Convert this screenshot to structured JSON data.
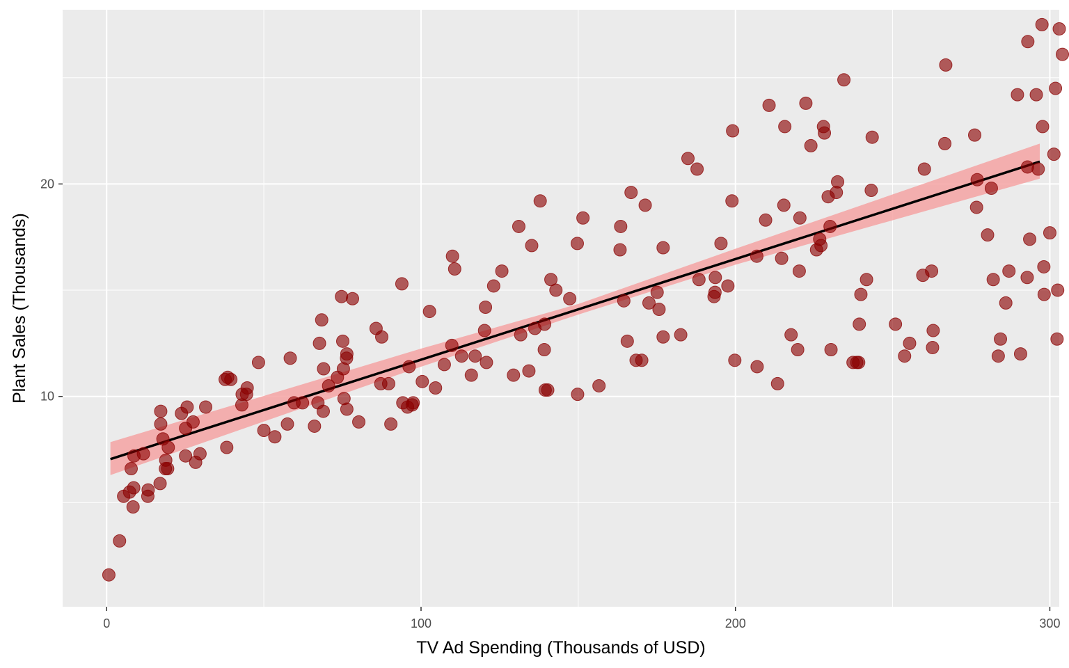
{
  "chart_data": {
    "type": "scatter",
    "title": "",
    "xlabel": "TV Ad Spending (Thousands of USD)",
    "ylabel": "Plant Sales  (Thousands)",
    "xlim": [
      -14,
      303
    ],
    "ylim": [
      0.1,
      28.2
    ],
    "x_ticks": [
      0,
      100,
      200,
      300
    ],
    "x_tick_labels": [
      "0",
      "100",
      "200",
      "300"
    ],
    "y_ticks": [
      10,
      20
    ],
    "y_tick_labels": [
      "10",
      "20"
    ],
    "grid": true,
    "legend": "none",
    "colors": {
      "panel_background": "#ebebeb",
      "grid": "#ffffff",
      "points": "#8b0000",
      "trend_line": "#000000",
      "confidence_band": "#f4a3a3"
    },
    "series": [
      {
        "kind": "points",
        "points": [
          [
            0.7,
            1.6
          ],
          [
            4.1,
            3.2
          ],
          [
            5.4,
            5.3
          ],
          [
            7.3,
            5.5
          ],
          [
            7.8,
            6.6
          ],
          [
            8.4,
            4.8
          ],
          [
            8.6,
            5.7
          ],
          [
            8.7,
            7.2
          ],
          [
            11.7,
            7.3
          ],
          [
            13.1,
            5.3
          ],
          [
            13.2,
            5.6
          ],
          [
            17.0,
            5.9
          ],
          [
            17.2,
            8.7
          ],
          [
            17.2,
            9.3
          ],
          [
            17.9,
            8.0
          ],
          [
            18.7,
            6.6
          ],
          [
            18.8,
            7.0
          ],
          [
            19.4,
            6.6
          ],
          [
            19.6,
            7.6
          ],
          [
            23.8,
            9.2
          ],
          [
            25.1,
            7.2
          ],
          [
            25.1,
            8.5
          ],
          [
            25.6,
            9.5
          ],
          [
            27.5,
            8.8
          ],
          [
            28.3,
            6.9
          ],
          [
            29.7,
            7.3
          ],
          [
            31.5,
            9.5
          ],
          [
            37.7,
            10.8
          ],
          [
            38.2,
            7.6
          ],
          [
            38.5,
            10.9
          ],
          [
            39.5,
            10.8
          ],
          [
            43.0,
            9.6
          ],
          [
            43.1,
            10.1
          ],
          [
            44.5,
            10.1
          ],
          [
            44.7,
            10.4
          ],
          [
            48.3,
            11.6
          ],
          [
            50.0,
            8.4
          ],
          [
            53.5,
            8.1
          ],
          [
            57.5,
            8.7
          ],
          [
            58.4,
            11.8
          ],
          [
            59.6,
            9.7
          ],
          [
            62.3,
            9.7
          ],
          [
            66.1,
            8.6
          ],
          [
            67.2,
            9.7
          ],
          [
            67.7,
            12.5
          ],
          [
            68.4,
            13.6
          ],
          [
            68.9,
            9.3
          ],
          [
            69.0,
            11.3
          ],
          [
            70.6,
            10.5
          ],
          [
            73.4,
            10.9
          ],
          [
            74.7,
            14.7
          ],
          [
            75.1,
            12.6
          ],
          [
            75.3,
            11.3
          ],
          [
            75.5,
            9.9
          ],
          [
            76.3,
            11.8
          ],
          [
            76.4,
            9.4
          ],
          [
            76.4,
            12.0
          ],
          [
            78.2,
            14.6
          ],
          [
            80.2,
            8.8
          ],
          [
            85.7,
            13.2
          ],
          [
            87.2,
            10.6
          ],
          [
            87.5,
            12.8
          ],
          [
            89.7,
            10.6
          ],
          [
            90.4,
            8.7
          ],
          [
            93.9,
            15.3
          ],
          [
            94.2,
            9.7
          ],
          [
            95.7,
            9.5
          ],
          [
            96.2,
            11.4
          ],
          [
            97.2,
            9.6
          ],
          [
            97.5,
            9.7
          ],
          [
            100.4,
            10.7
          ],
          [
            102.7,
            14.0
          ],
          [
            104.6,
            10.4
          ],
          [
            107.4,
            11.5
          ],
          [
            109.8,
            12.4
          ],
          [
            110.0,
            16.6
          ],
          [
            110.7,
            16.0
          ],
          [
            112.9,
            11.9
          ],
          [
            116.0,
            11.0
          ],
          [
            117.2,
            11.9
          ],
          [
            120.2,
            13.1
          ],
          [
            120.5,
            14.2
          ],
          [
            120.8,
            11.6
          ],
          [
            123.1,
            15.2
          ],
          [
            125.7,
            15.9
          ],
          [
            129.4,
            11.0
          ],
          [
            131.1,
            18.0
          ],
          [
            131.7,
            12.9
          ],
          [
            134.3,
            11.2
          ],
          [
            135.2,
            17.1
          ],
          [
            136.2,
            13.2
          ],
          [
            137.9,
            19.2
          ],
          [
            139.2,
            12.2
          ],
          [
            139.3,
            13.4
          ],
          [
            139.5,
            10.3
          ],
          [
            140.3,
            10.3
          ],
          [
            141.3,
            15.5
          ],
          [
            142.9,
            15.0
          ],
          [
            147.3,
            14.6
          ],
          [
            149.7,
            17.2
          ],
          [
            149.8,
            10.1
          ],
          [
            151.5,
            18.4
          ],
          [
            156.6,
            10.5
          ],
          [
            163.3,
            16.9
          ],
          [
            163.5,
            18.0
          ],
          [
            164.5,
            14.5
          ],
          [
            165.6,
            12.6
          ],
          [
            166.8,
            19.6
          ],
          [
            168.4,
            11.7
          ],
          [
            170.2,
            11.7
          ],
          [
            171.3,
            19.0
          ],
          [
            172.5,
            14.4
          ],
          [
            175.1,
            14.9
          ],
          [
            175.7,
            14.1
          ],
          [
            177.0,
            17.0
          ],
          [
            177.0,
            12.8
          ],
          [
            182.6,
            12.9
          ],
          [
            184.9,
            21.2
          ],
          [
            187.8,
            20.7
          ],
          [
            188.4,
            15.5
          ],
          [
            193.2,
            14.7
          ],
          [
            193.5,
            14.9
          ],
          [
            193.6,
            15.6
          ],
          [
            195.4,
            17.2
          ],
          [
            197.6,
            15.2
          ],
          [
            198.9,
            19.2
          ],
          [
            199.1,
            22.5
          ],
          [
            199.8,
            11.7
          ],
          [
            206.8,
            16.6
          ],
          [
            206.9,
            11.4
          ],
          [
            209.6,
            18.3
          ],
          [
            210.7,
            23.7
          ],
          [
            213.4,
            10.6
          ],
          [
            214.7,
            16.5
          ],
          [
            215.4,
            19.0
          ],
          [
            215.7,
            22.7
          ],
          [
            217.7,
            12.9
          ],
          [
            219.8,
            12.2
          ],
          [
            220.3,
            15.9
          ],
          [
            220.5,
            18.4
          ],
          [
            222.4,
            23.8
          ],
          [
            224.0,
            21.8
          ],
          [
            225.8,
            16.9
          ],
          [
            226.8,
            17.4
          ],
          [
            227.2,
            17.1
          ],
          [
            228.0,
            22.7
          ],
          [
            228.3,
            22.4
          ],
          [
            229.5,
            19.4
          ],
          [
            230.1,
            18.0
          ],
          [
            230.4,
            12.2
          ],
          [
            232.1,
            19.6
          ],
          [
            232.5,
            20.1
          ],
          [
            234.5,
            24.9
          ],
          [
            237.4,
            11.6
          ],
          [
            238.6,
            11.6
          ],
          [
            239.2,
            11.6
          ],
          [
            239.4,
            13.4
          ],
          [
            239.9,
            14.8
          ],
          [
            241.7,
            15.5
          ],
          [
            243.2,
            19.7
          ],
          [
            243.5,
            22.2
          ],
          [
            250.9,
            13.4
          ],
          [
            253.8,
            11.9
          ],
          [
            255.4,
            12.5
          ],
          [
            259.6,
            15.7
          ],
          [
            260.1,
            20.7
          ],
          [
            262.4,
            15.9
          ],
          [
            262.9,
            13.1
          ],
          [
            262.7,
            12.3
          ],
          [
            266.6,
            21.9
          ],
          [
            266.9,
            25.6
          ],
          [
            276.1,
            22.3
          ],
          [
            276.7,
            18.9
          ],
          [
            276.9,
            20.2
          ],
          [
            280.2,
            17.6
          ],
          [
            281.4,
            19.8
          ],
          [
            283.6,
            11.9
          ],
          [
            284.3,
            12.7
          ],
          [
            286.0,
            14.4
          ],
          [
            289.7,
            24.2
          ],
          [
            290.7,
            12.0
          ],
          [
            292.9,
            20.8
          ],
          [
            292.8,
            15.6
          ],
          [
            293.6,
            17.4
          ],
          [
            295.7,
            24.2
          ],
          [
            297.5,
            27.5
          ],
          [
            297.7,
            22.7
          ],
          [
            298.1,
            16.1
          ],
          [
            298.2,
            14.8
          ],
          [
            300.0,
            17.7
          ],
          [
            301.3,
            21.4
          ],
          [
            301.8,
            24.5
          ],
          [
            302.3,
            12.7
          ],
          [
            302.5,
            15.0
          ],
          [
            303.0,
            27.3
          ],
          [
            304.0,
            26.1
          ],
          [
            293.0,
            26.7
          ],
          [
            287.0,
            15.9
          ],
          [
            282.0,
            15.5
          ],
          [
            296.3,
            20.7
          ]
        ]
      },
      {
        "kind": "trend_line",
        "x": [
          1.2,
          296.8
        ],
        "y": [
          7.05,
          21.05
        ]
      },
      {
        "kind": "confidence_band",
        "x": [
          1.2,
          100,
          150,
          200,
          296.8
        ],
        "lower": [
          6.3,
          11.4,
          13.85,
          16.2,
          20.25
        ],
        "upper": [
          7.85,
          12.25,
          14.35,
          16.95,
          21.9
        ]
      }
    ]
  }
}
